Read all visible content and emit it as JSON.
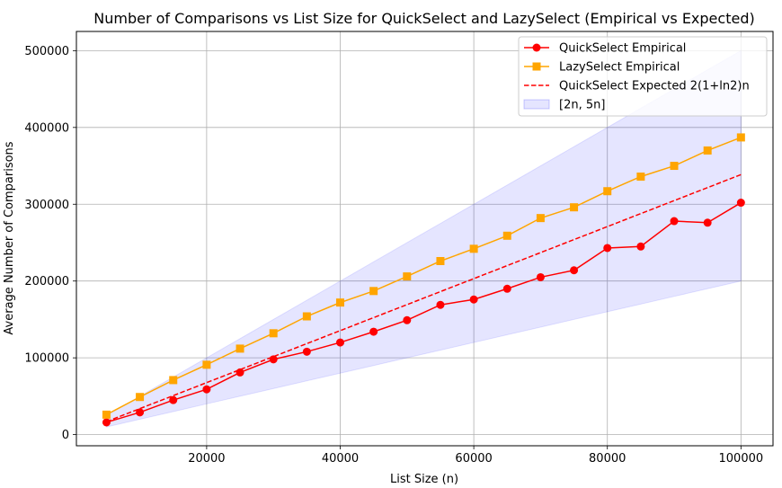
{
  "chart_data": {
    "type": "line",
    "title": "Number of Comparisons vs List Size for QuickSelect and LazySelect (Empirical vs Expected)",
    "xlabel": "List Size (n)",
    "ylabel": "Average Number of Comparisons",
    "xlim": [
      500,
      104800
    ],
    "ylim": [
      -14500,
      525000
    ],
    "xticks": [
      20000,
      40000,
      60000,
      80000,
      100000
    ],
    "xtick_labels": [
      "20000",
      "40000",
      "60000",
      "80000",
      "100000"
    ],
    "yticks": [
      0,
      100000,
      200000,
      300000,
      400000,
      500000
    ],
    "ytick_labels": [
      "0",
      "100000",
      "200000",
      "300000",
      "400000",
      "500000"
    ],
    "grid": true,
    "legend_position": "top-right",
    "x": [
      5000,
      10000,
      15000,
      20000,
      25000,
      30000,
      35000,
      40000,
      45000,
      50000,
      55000,
      60000,
      65000,
      70000,
      75000,
      80000,
      85000,
      90000,
      95000,
      100000
    ],
    "series": [
      {
        "name": "QuickSelect Empirical",
        "kind": "line-marker",
        "marker": "circle",
        "color": "#ff0000",
        "values": [
          16000,
          29000,
          45000,
          59000,
          81000,
          98000,
          108000,
          120000,
          134000,
          149000,
          169000,
          176000,
          190000,
          205000,
          214000,
          243000,
          245000,
          278000,
          276000,
          302000
        ]
      },
      {
        "name": "LazySelect Empirical",
        "kind": "line-marker",
        "marker": "square",
        "color": "#ffa500",
        "values": [
          26000,
          49000,
          71000,
          91000,
          112000,
          132000,
          154000,
          172000,
          187000,
          206000,
          226000,
          242000,
          259000,
          282000,
          296000,
          317000,
          336000,
          350000,
          370000,
          387000
        ]
      },
      {
        "name": "QuickSelect Expected 2(1+ln2)n",
        "kind": "dashed-line",
        "color": "#ff0000",
        "slope": 3.386
      },
      {
        "name": "[2n, 5n]",
        "kind": "band",
        "color": "#0000ff",
        "lower_factor": 2,
        "upper_factor": 5
      }
    ]
  }
}
